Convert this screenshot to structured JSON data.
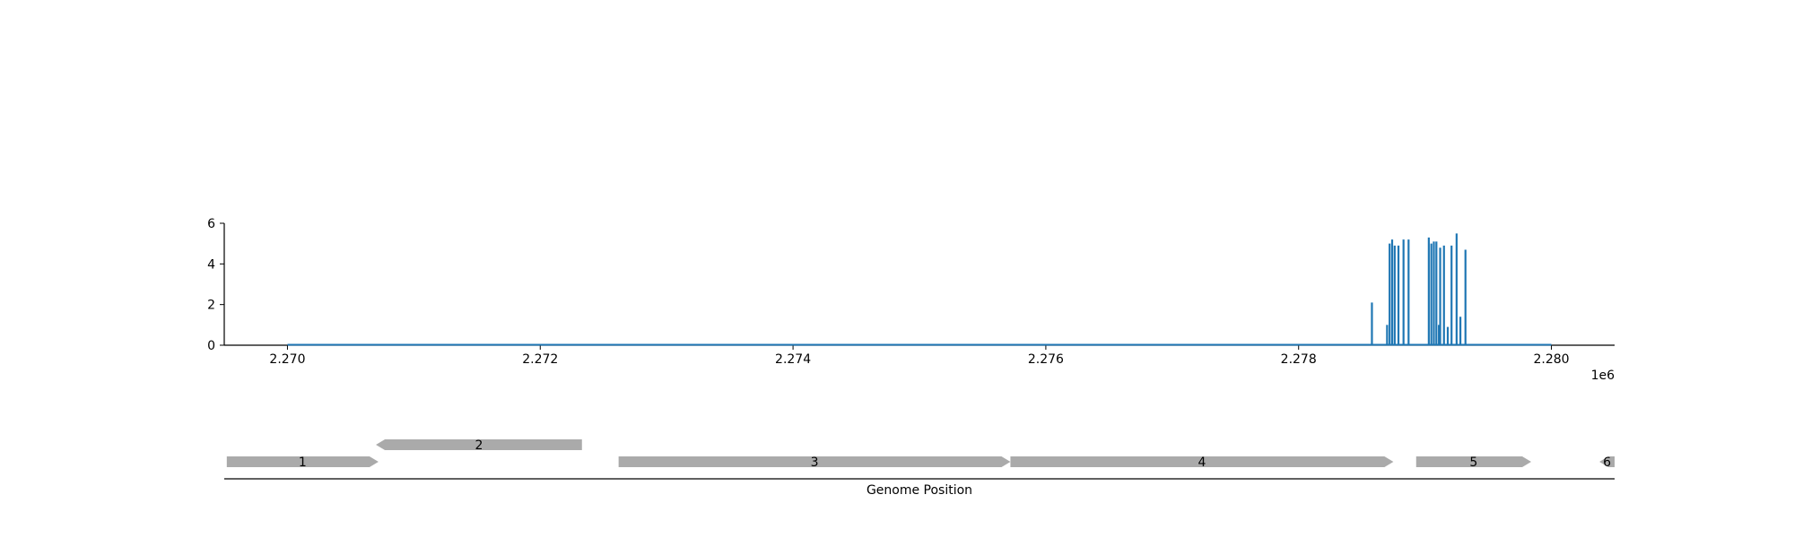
{
  "chart_data": {
    "type": "bar",
    "title": "",
    "xlabel": "",
    "ylabel": "",
    "xlim": [
      2269500,
      2280500
    ],
    "ylim": [
      0,
      6
    ],
    "x_ticks": [
      2270000,
      2272000,
      2274000,
      2276000,
      2278000,
      2280000
    ],
    "x_tick_labels": [
      "2.270",
      "2.272",
      "2.274",
      "2.276",
      "2.278",
      "2.280"
    ],
    "x_offset_label": "1e6",
    "y_ticks": [
      0,
      2,
      4,
      6
    ],
    "y_tick_labels": [
      "0",
      "2",
      "4",
      "6"
    ],
    "baseline": {
      "from": 2270000,
      "to": 2280000,
      "value": 0
    },
    "bar_color": "#1f77b4",
    "grid": false,
    "bars": [
      {
        "x": 2278580,
        "value": 2.1
      },
      {
        "x": 2278700,
        "value": 1.0
      },
      {
        "x": 2278720,
        "value": 5.0
      },
      {
        "x": 2278740,
        "value": 5.2
      },
      {
        "x": 2278760,
        "value": 4.9
      },
      {
        "x": 2278790,
        "value": 4.9
      },
      {
        "x": 2278830,
        "value": 5.2
      },
      {
        "x": 2278870,
        "value": 5.2
      },
      {
        "x": 2279030,
        "value": 5.3
      },
      {
        "x": 2279050,
        "value": 5.0
      },
      {
        "x": 2279070,
        "value": 5.1
      },
      {
        "x": 2279090,
        "value": 5.1
      },
      {
        "x": 2279110,
        "value": 1.0
      },
      {
        "x": 2279120,
        "value": 4.8
      },
      {
        "x": 2279150,
        "value": 4.9
      },
      {
        "x": 2279180,
        "value": 0.9
      },
      {
        "x": 2279210,
        "value": 4.9
      },
      {
        "x": 2279250,
        "value": 5.5
      },
      {
        "x": 2279280,
        "value": 1.4
      },
      {
        "x": 2279320,
        "value": 4.7
      }
    ]
  },
  "gene_track": {
    "xlabel": "Genome Position",
    "feature_color": "#aaaaaa",
    "genes": [
      {
        "label": "1",
        "start": 2269520,
        "end": 2270720,
        "strand": "+",
        "row": 0
      },
      {
        "label": "2",
        "start": 2270700,
        "end": 2272330,
        "strand": "-",
        "row": 1
      },
      {
        "label": "3",
        "start": 2272620,
        "end": 2275720,
        "strand": "+",
        "row": 0
      },
      {
        "label": "4",
        "start": 2275720,
        "end": 2278750,
        "strand": "+",
        "row": 0
      },
      {
        "label": "5",
        "start": 2278930,
        "end": 2279840,
        "strand": "+",
        "row": 0
      },
      {
        "label": "6",
        "start": 2280380,
        "end": 2280500,
        "strand": "-",
        "row": 0
      }
    ]
  }
}
